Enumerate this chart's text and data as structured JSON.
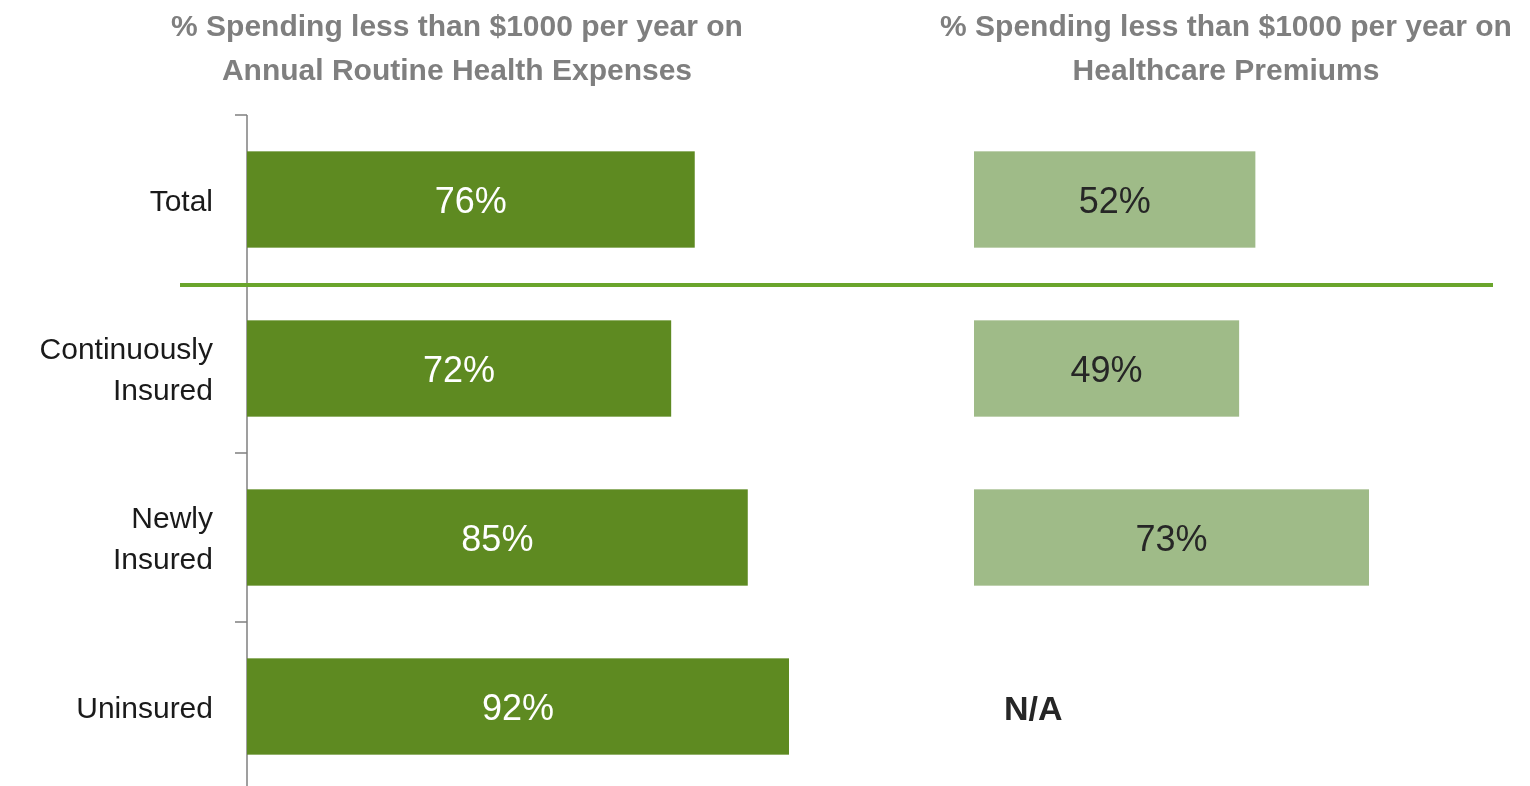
{
  "chart_data": [
    {
      "type": "bar",
      "orientation": "horizontal",
      "title": "% Spending less than $1000 per year on Annual Routine Health Expenses",
      "categories": [
        "Total",
        "Continuously Insured",
        "Newly Insured",
        "Uninsured"
      ],
      "values": [
        76,
        72,
        85,
        92
      ],
      "color": "#5e8a21",
      "value_labels": [
        "76%",
        "72%",
        "85%",
        "92%"
      ],
      "tick_labels": "y"
    },
    {
      "type": "bar",
      "orientation": "horizontal",
      "title": "% Spending less than $1000 per year on Healthcare Premiums",
      "categories": [
        null,
        null,
        null,
        null
      ],
      "values": [
        52,
        49,
        73,
        null
      ],
      "color": "#9fbb88",
      "value_labels": [
        "52%",
        "49%",
        "73%",
        "N/A"
      ],
      "tick_labels": false
    }
  ]
}
